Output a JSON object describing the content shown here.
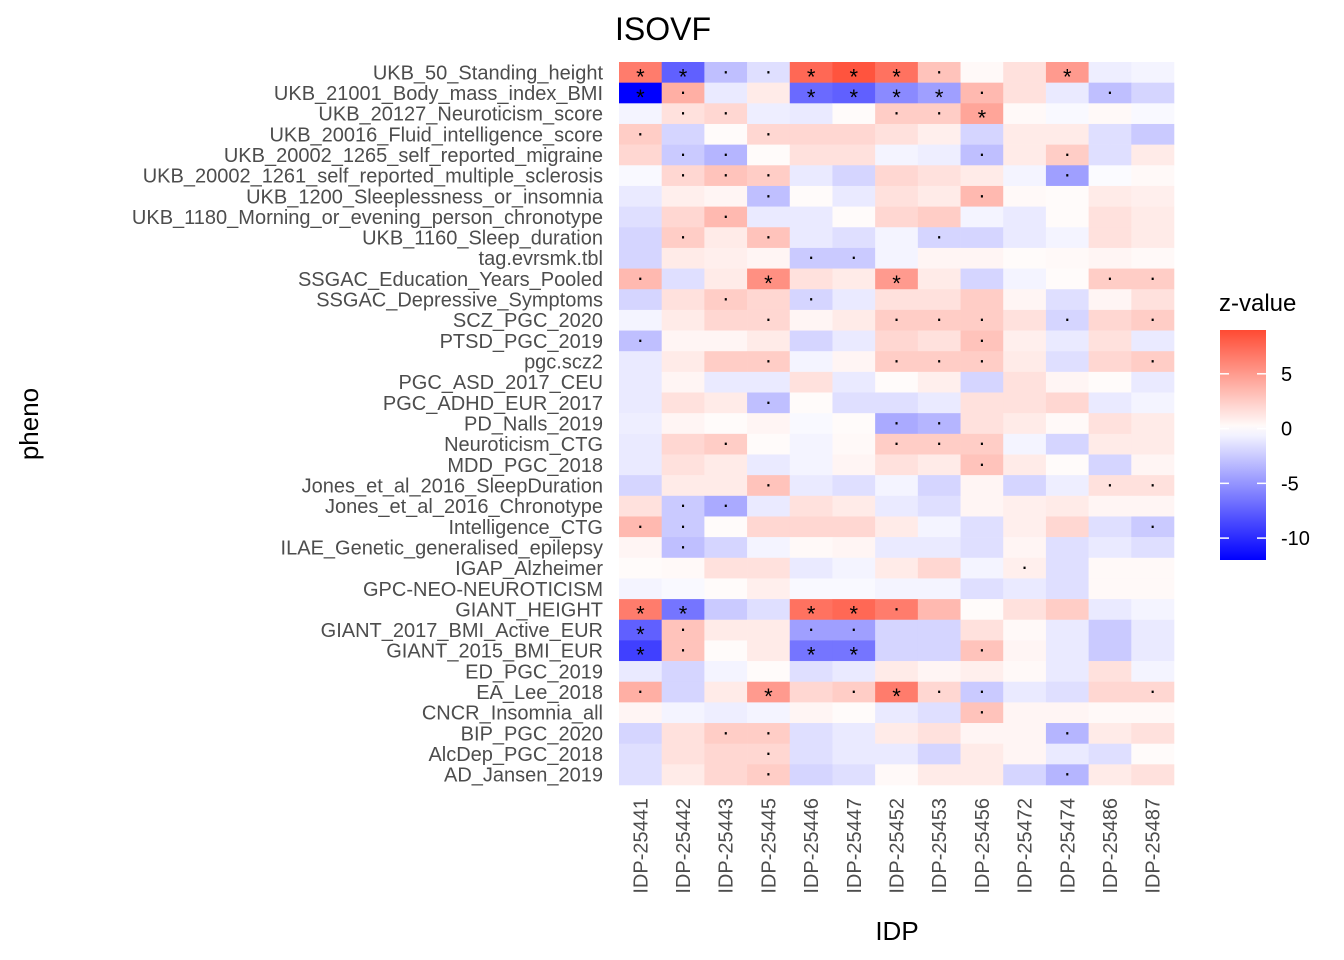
{
  "chart_data": {
    "type": "heatmap",
    "title": "ISOVF",
    "xlabel": "IDP",
    "ylabel": "pheno",
    "x_categories": [
      "IDP-25441",
      "IDP-25442",
      "IDP-25443",
      "IDP-25445",
      "IDP-25446",
      "IDP-25447",
      "IDP-25452",
      "IDP-25453",
      "IDP-25456",
      "IDP-25472",
      "IDP-25474",
      "IDP-25486",
      "IDP-25487"
    ],
    "y_categories": [
      "UKB_50_Standing_height",
      "UKB_21001_Body_mass_index_BMI",
      "UKB_20127_Neuroticism_score",
      "UKB_20016_Fluid_intelligence_score",
      "UKB_20002_1265_self_reported_migraine",
      "UKB_20002_1261_self_reported_multiple_sclerosis",
      "UKB_1200_Sleeplessness_or_insomnia",
      "UKB_1180_Morning_or_evening_person_chronotype",
      "UKB_1160_Sleep_duration",
      "tag.evrsmk.tbl",
      "SSGAC_Education_Years_Pooled",
      "SSGAC_Depressive_Symptoms",
      "SCZ_PGC_2020",
      "PTSD_PGC_2019",
      "pgc.scz2",
      "PGC_ASD_2017_CEU",
      "PGC_ADHD_EUR_2017",
      "PD_Nalls_2019",
      "Neuroticism_CTG",
      "MDD_PGC_2018",
      "Jones_et_al_2016_SleepDuration",
      "Jones_et_al_2016_Chronotype",
      "Intelligence_CTG",
      "ILAE_Genetic_generalised_epilepsy",
      "IGAP_Alzheimer",
      "GPC-NEO-NEUROTICISM",
      "GIANT_HEIGHT",
      "GIANT_2017_BMI_Active_EUR",
      "GIANT_2015_BMI_EUR",
      "ED_PGC_2019",
      "EA_Lee_2018",
      "CNCR_Insomnia_all",
      "BIP_PGC_2020",
      "AlcDep_PGC_2018",
      "AD_Jansen_2019"
    ],
    "z_values": [
      [
        6.5,
        -7.5,
        -3.0,
        -1.5,
        7.5,
        8.5,
        7.0,
        3.0,
        0.3,
        1.5,
        5.0,
        -0.8,
        -0.5
      ],
      [
        -12.0,
        4.0,
        -1.0,
        1.0,
        -7.0,
        -7.5,
        -5.5,
        -4.5,
        3.5,
        1.5,
        -1.0,
        -3.0,
        -2.0
      ],
      [
        -0.5,
        1.5,
        2.0,
        -0.8,
        -1.0,
        0.2,
        2.5,
        2.5,
        4.5,
        0.3,
        -0.3,
        0.3,
        -0.3
      ],
      [
        2.5,
        -2.0,
        0.2,
        2.0,
        2.0,
        2.0,
        1.5,
        0.8,
        -2.0,
        1.0,
        1.0,
        -1.5,
        -2.5
      ],
      [
        2.0,
        -2.5,
        -3.5,
        0.2,
        1.5,
        1.5,
        -0.5,
        -0.8,
        -3.0,
        1.0,
        2.5,
        -1.5,
        1.0
      ],
      [
        -0.3,
        2.0,
        3.0,
        2.5,
        -1.0,
        -2.0,
        2.0,
        1.5,
        1.0,
        -0.5,
        -4.5,
        -0.2,
        0.3
      ],
      [
        -1.0,
        0.8,
        0.5,
        -3.0,
        0.2,
        -1.0,
        1.5,
        1.0,
        3.5,
        0.3,
        0.2,
        1.0,
        0.8
      ],
      [
        -1.5,
        2.0,
        3.5,
        -1.0,
        -1.0,
        0.2,
        2.0,
        2.5,
        -0.5,
        -1.0,
        0.2,
        1.5,
        1.0
      ],
      [
        -2.0,
        2.5,
        1.0,
        3.0,
        -1.0,
        -1.5,
        -0.5,
        -2.0,
        -2.0,
        -1.0,
        -0.5,
        1.5,
        1.0
      ],
      [
        -2.0,
        1.0,
        0.8,
        0.5,
        -2.5,
        -2.5,
        -0.5,
        0.5,
        0.5,
        0.2,
        0.3,
        0.5,
        0.3
      ],
      [
        3.5,
        -1.5,
        1.0,
        5.5,
        1.5,
        1.0,
        5.0,
        1.0,
        -2.0,
        -0.5,
        0.2,
        2.5,
        2.5
      ],
      [
        -2.0,
        1.5,
        2.5,
        2.0,
        -2.0,
        -1.0,
        1.5,
        1.5,
        2.5,
        0.5,
        -1.5,
        0.5,
        1.5
      ],
      [
        -0.5,
        1.0,
        2.0,
        2.0,
        0.5,
        1.0,
        2.5,
        2.5,
        2.5,
        1.5,
        -2.0,
        2.0,
        2.5
      ],
      [
        -3.0,
        0.5,
        0.5,
        1.0,
        -2.0,
        -1.0,
        2.0,
        1.5,
        3.0,
        0.8,
        -1.0,
        1.5,
        -1.0
      ],
      [
        -1.0,
        1.0,
        2.5,
        2.5,
        -0.5,
        0.5,
        2.5,
        2.5,
        2.5,
        1.0,
        -1.5,
        2.0,
        2.5
      ],
      [
        -1.0,
        0.5,
        -1.0,
        -1.0,
        1.5,
        -1.0,
        0.2,
        0.8,
        -2.0,
        1.5,
        0.5,
        0.2,
        -1.0
      ],
      [
        -1.0,
        1.5,
        1.0,
        -3.0,
        0.2,
        -1.5,
        -1.5,
        -1.0,
        1.5,
        1.5,
        2.0,
        -1.0,
        -0.5
      ],
      [
        -0.8,
        0.5,
        0.2,
        0.5,
        -0.3,
        0.2,
        -4.0,
        -3.5,
        1.5,
        1.0,
        0.3,
        1.5,
        1.0
      ],
      [
        -1.0,
        2.0,
        2.5,
        0.2,
        -0.5,
        0.3,
        2.5,
        2.5,
        2.5,
        -0.5,
        -2.0,
        1.0,
        1.0
      ],
      [
        -1.0,
        1.5,
        1.0,
        -1.0,
        -0.5,
        0.5,
        1.5,
        1.0,
        3.0,
        1.0,
        0.2,
        -2.0,
        0.5
      ],
      [
        -2.0,
        1.0,
        1.0,
        3.0,
        -1.0,
        -1.5,
        -0.5,
        -2.0,
        0.5,
        -2.0,
        -0.8,
        1.5,
        1.5
      ],
      [
        1.5,
        -2.5,
        -4.0,
        -1.0,
        1.5,
        1.0,
        -1.0,
        -1.5,
        0.5,
        0.8,
        1.0,
        0.5,
        0.5
      ],
      [
        3.5,
        -2.5,
        0.2,
        2.0,
        2.0,
        2.0,
        1.0,
        -0.5,
        -1.5,
        0.8,
        2.0,
        -1.5,
        -2.5
      ],
      [
        0.5,
        -3.0,
        -2.0,
        -0.5,
        0.3,
        0.5,
        -1.0,
        -1.0,
        -1.5,
        0.5,
        -1.5,
        -1.0,
        -1.5
      ],
      [
        0.2,
        0.3,
        1.5,
        1.5,
        -1.0,
        -0.5,
        1.0,
        2.0,
        -0.5,
        0.8,
        -1.5,
        0.3,
        0.3
      ],
      [
        -0.5,
        -0.3,
        0.2,
        0.8,
        -0.3,
        -0.3,
        -0.5,
        -0.5,
        -1.5,
        -1.0,
        -1.5,
        0.3,
        0.3
      ],
      [
        6.5,
        -6.5,
        -2.5,
        -1.5,
        7.0,
        7.5,
        6.5,
        3.5,
        0.2,
        1.5,
        2.5,
        -1.0,
        -0.5
      ],
      [
        -7.5,
        3.0,
        1.0,
        1.0,
        -4.5,
        -4.5,
        -2.0,
        -2.0,
        1.5,
        0.3,
        -1.0,
        -2.5,
        -1.0
      ],
      [
        -9.0,
        3.0,
        0.2,
        1.0,
        -6.5,
        -6.5,
        -2.0,
        -2.0,
        3.0,
        0.5,
        -1.0,
        -2.5,
        -1.0
      ],
      [
        -1.0,
        -2.0,
        -0.5,
        0.2,
        -1.5,
        -1.0,
        1.0,
        0.5,
        0.8,
        0.3,
        -1.0,
        1.5,
        -0.5
      ],
      [
        4.0,
        -2.0,
        1.0,
        5.0,
        2.0,
        2.5,
        6.5,
        2.0,
        -2.5,
        -1.0,
        -1.5,
        2.0,
        2.0
      ],
      [
        0.5,
        -0.5,
        -0.8,
        -0.5,
        0.5,
        0.2,
        -1.0,
        -1.5,
        3.0,
        0.5,
        0.5,
        0.3,
        0.3
      ],
      [
        -2.0,
        1.5,
        2.5,
        2.5,
        -1.5,
        -1.0,
        1.0,
        1.5,
        0.5,
        0.5,
        -3.5,
        1.0,
        1.5
      ],
      [
        -1.5,
        1.5,
        2.0,
        2.0,
        -1.5,
        -1.0,
        -1.0,
        -2.0,
        1.0,
        0.5,
        -1.0,
        -1.5,
        0.2
      ],
      [
        -1.5,
        1.0,
        2.0,
        2.5,
        -2.0,
        -1.5,
        0.3,
        1.0,
        1.0,
        -2.0,
        -3.5,
        1.0,
        1.5
      ]
    ],
    "markers": [
      [
        "*",
        "*",
        "·",
        "·",
        "*",
        "*",
        "*",
        "·",
        "",
        "",
        "*",
        "",
        ""
      ],
      [
        "*",
        "·",
        "",
        "",
        "*",
        "*",
        "*",
        "*",
        "·",
        "",
        "",
        "·",
        ""
      ],
      [
        "",
        "·",
        "·",
        "",
        "",
        "",
        "·",
        "·",
        "*",
        "",
        "",
        "",
        ""
      ],
      [
        "·",
        "",
        "",
        "·",
        "",
        "",
        "",
        "",
        "",
        "",
        "",
        "",
        ""
      ],
      [
        "",
        "·",
        "·",
        "",
        "",
        "",
        "",
        "",
        "·",
        "",
        "·",
        "",
        ""
      ],
      [
        "",
        "·",
        "·",
        "·",
        "",
        "",
        "",
        "",
        "",
        "",
        "·",
        "",
        ""
      ],
      [
        "",
        "",
        "",
        "·",
        "",
        "",
        "",
        "",
        "·",
        "",
        "",
        "",
        ""
      ],
      [
        "",
        "",
        "·",
        "",
        "",
        "",
        "",
        "",
        "",
        "",
        "",
        "",
        ""
      ],
      [
        "",
        "·",
        "",
        "·",
        "",
        "",
        "",
        "·",
        "",
        "",
        "",
        "",
        ""
      ],
      [
        "",
        "",
        "",
        "",
        "·",
        "·",
        "",
        "",
        "",
        "",
        "",
        "",
        ""
      ],
      [
        "·",
        "",
        "",
        "*",
        "",
        "",
        "*",
        "",
        "",
        "",
        "",
        "·",
        "·"
      ],
      [
        "",
        "",
        "·",
        "",
        "·",
        "",
        "",
        "",
        "",
        "",
        "",
        "",
        ""
      ],
      [
        "",
        "",
        "",
        "·",
        "",
        "",
        "·",
        "·",
        "·",
        "",
        "·",
        "",
        "·"
      ],
      [
        "·",
        "",
        "",
        "",
        "",
        "",
        "",
        "",
        "·",
        "",
        "",
        "",
        ""
      ],
      [
        "",
        "",
        "",
        "·",
        "",
        "",
        "·",
        "·",
        "·",
        "",
        "",
        "",
        "·"
      ],
      [
        "",
        "",
        "",
        "",
        "",
        "",
        "",
        "",
        "",
        "",
        "",
        "",
        ""
      ],
      [
        "",
        "",
        "",
        "·",
        "",
        "",
        "",
        "",
        "",
        "",
        "",
        "",
        ""
      ],
      [
        "",
        "",
        "",
        "",
        "",
        "",
        "·",
        "·",
        "",
        "",
        "",
        "",
        ""
      ],
      [
        "",
        "",
        "·",
        "",
        "",
        "",
        "·",
        "·",
        "·",
        "",
        "",
        "",
        ""
      ],
      [
        "",
        "",
        "",
        "",
        "",
        "",
        "",
        "",
        "·",
        "",
        "",
        "",
        ""
      ],
      [
        "",
        "",
        "",
        "·",
        "",
        "",
        "",
        "",
        "",
        "",
        "",
        "·",
        "·"
      ],
      [
        "",
        "·",
        "·",
        "",
        "",
        "",
        "",
        "",
        "",
        "",
        "",
        "",
        ""
      ],
      [
        "·",
        "·",
        "",
        "",
        "",
        "",
        "",
        "",
        "",
        "",
        "",
        "",
        "·"
      ],
      [
        "",
        "·",
        "",
        "",
        "",
        "",
        "",
        "",
        "",
        "",
        "",
        "",
        ""
      ],
      [
        "",
        "",
        "",
        "",
        "",
        "",
        "",
        "",
        "",
        "·",
        "",
        "",
        ""
      ],
      [
        "",
        "",
        "",
        "",
        "",
        "",
        "",
        "",
        "",
        "",
        "",
        "",
        ""
      ],
      [
        "*",
        "*",
        "",
        "",
        "*",
        "*",
        "·",
        "",
        "",
        "",
        "",
        "",
        ""
      ],
      [
        "*",
        "·",
        "",
        "",
        "·",
        "·",
        "",
        "",
        "",
        "",
        "",
        "",
        ""
      ],
      [
        "*",
        "·",
        "",
        "",
        "*",
        "*",
        "",
        "",
        "·",
        "",
        "",
        "",
        ""
      ],
      [
        "",
        "",
        "",
        "",
        "",
        "",
        "",
        "",
        "",
        "",
        "",
        "",
        ""
      ],
      [
        "·",
        "",
        "",
        "*",
        "",
        "·",
        "*",
        "·",
        "·",
        "",
        "",
        "",
        "·"
      ],
      [
        "",
        "",
        "",
        "",
        "",
        "",
        "",
        "",
        "·",
        "",
        "",
        "",
        ""
      ],
      [
        "",
        "",
        "·",
        "·",
        "",
        "",
        "",
        "",
        "",
        "",
        "·",
        "",
        ""
      ],
      [
        "",
        "",
        "",
        "·",
        "",
        "",
        "",
        "",
        "",
        "",
        "",
        "",
        ""
      ],
      [
        "",
        "",
        "",
        "·",
        "",
        "",
        "",
        "",
        "",
        "",
        "·",
        "",
        ""
      ]
    ],
    "legend": {
      "title": "z-value",
      "ticks": [
        5,
        0,
        -5,
        -10
      ],
      "range": [
        -12,
        9
      ],
      "colors": {
        "low": "#0000ff",
        "mid": "#ffffff",
        "high": "#ff4a33"
      },
      "placement": "right"
    },
    "grid": true
  }
}
